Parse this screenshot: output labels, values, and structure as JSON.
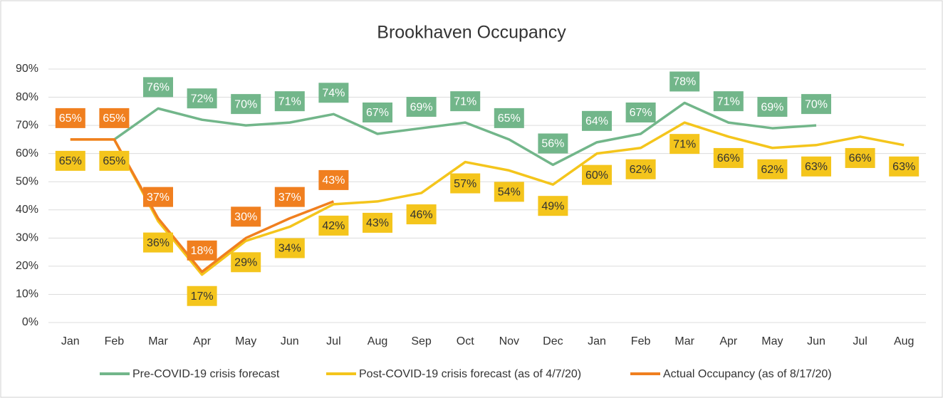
{
  "chart_data": {
    "type": "line",
    "title": "Brookhaven Occupancy",
    "categories": [
      "Jan",
      "Feb",
      "Mar",
      "Apr",
      "May",
      "Jun",
      "Jul",
      "Aug",
      "Sep",
      "Oct",
      "Nov",
      "Dec",
      "Jan",
      "Feb",
      "Mar",
      "Apr",
      "May",
      "Jun",
      "Jul",
      "Aug"
    ],
    "ylim": [
      0,
      90
    ],
    "yticks": [
      {
        "value": 0,
        "label": "0%"
      },
      {
        "value": 10,
        "label": "10%"
      },
      {
        "value": 20,
        "label": "20%"
      },
      {
        "value": 30,
        "label": "30%"
      },
      {
        "value": 40,
        "label": "40%"
      },
      {
        "value": 50,
        "label": "50%"
      },
      {
        "value": 60,
        "label": "60%"
      },
      {
        "value": 70,
        "label": "70%"
      },
      {
        "value": 80,
        "label": "80%"
      },
      {
        "value": 90,
        "label": "90%"
      }
    ],
    "grid": true,
    "legend": "bottom",
    "series": [
      {
        "name": "Pre-COVID-19 crisis forecast",
        "color": "#72b68a",
        "label_side": "above",
        "values": [
          null,
          65,
          76,
          72,
          70,
          71,
          74,
          67,
          69,
          71,
          65,
          56,
          64,
          67,
          78,
          71,
          69,
          70,
          null,
          null
        ],
        "value_labels": [
          null,
          null,
          "76%",
          "72%",
          "70%",
          "71%",
          "74%",
          "67%",
          "69%",
          "71%",
          "65%",
          "56%",
          "64%",
          "67%",
          "78%",
          "71%",
          "69%",
          "70%",
          null,
          null
        ]
      },
      {
        "name": "Post-COVID-19 crisis forecast (as of 4/7/20)",
        "color": "#f4c51c",
        "label_side": "below",
        "values": [
          65,
          65,
          36,
          17,
          29,
          34,
          42,
          43,
          46,
          57,
          54,
          49,
          60,
          62,
          71,
          66,
          62,
          63,
          66,
          63
        ],
        "value_labels": [
          "65%",
          "65%",
          "36%",
          "17%",
          "29%",
          "34%",
          "42%",
          "43%",
          "46%",
          "57%",
          "54%",
          "49%",
          "60%",
          "62%",
          "71%",
          "66%",
          "62%",
          "63%",
          "66%",
          "63%"
        ]
      },
      {
        "name": "Actual Occupancy (as of 8/17/20)",
        "color": "#f07f1f",
        "label_side": "above",
        "values": [
          65,
          65,
          37,
          18,
          30,
          37,
          43,
          null,
          null,
          null,
          null,
          null,
          null,
          null,
          null,
          null,
          null,
          null,
          null,
          null
        ],
        "value_labels": [
          "65%",
          "65%",
          "37%",
          "18%",
          "30%",
          "37%",
          "43%",
          null,
          null,
          null,
          null,
          null,
          null,
          null,
          null,
          null,
          null,
          null,
          null,
          null
        ]
      }
    ]
  }
}
